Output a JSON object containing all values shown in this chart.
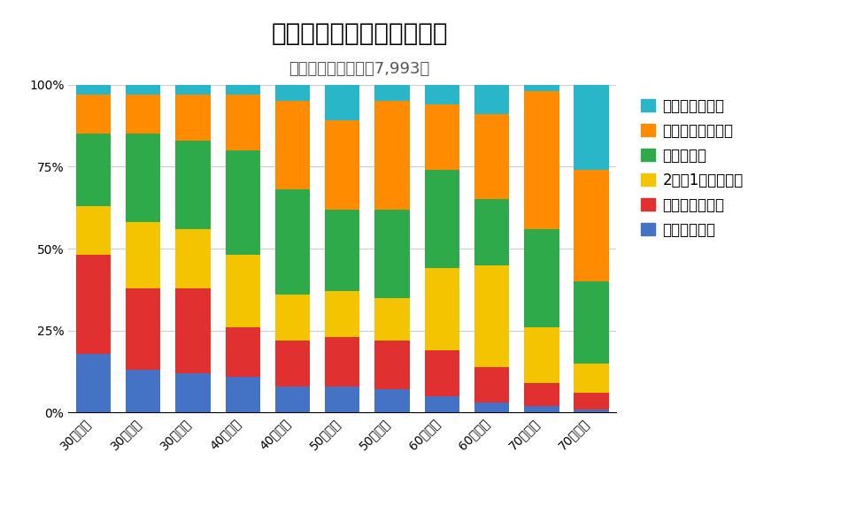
{
  "title": "早朝勃起の年齢による推移",
  "subtitle": "質問紙による調査：7,993例",
  "categories": [
    "30歳未満",
    "30代前半",
    "30代後半",
    "40代前半",
    "40代後半",
    "50代前半",
    "50代後半",
    "60代前半",
    "60代後半",
    "70代前半",
    "70代後半"
  ],
  "legend_labels": [
    "全く気づかない",
    "あまり気づかない",
    "時々気づく",
    "2日に1回は気づく",
    "しばしば気づく",
    "いつも気づく"
  ],
  "colors": [
    "#29B6C8",
    "#FF8C00",
    "#2EAA4A",
    "#F5C400",
    "#E03030",
    "#4472C4"
  ],
  "data": {
    "いつも気づく": [
      18,
      13,
      12,
      11,
      8,
      8,
      7,
      5,
      3,
      2,
      1
    ],
    "しばしば気づく": [
      30,
      25,
      26,
      15,
      14,
      15,
      15,
      14,
      11,
      7,
      5
    ],
    "2日に1回は気づく": [
      15,
      20,
      18,
      22,
      14,
      14,
      13,
      25,
      31,
      17,
      9
    ],
    "時々気づく": [
      22,
      27,
      27,
      32,
      32,
      25,
      27,
      30,
      20,
      30,
      25
    ],
    "あまり気づかない": [
      12,
      12,
      14,
      17,
      27,
      27,
      33,
      20,
      26,
      42,
      34
    ],
    "全く気づかない": [
      3,
      3,
      3,
      3,
      5,
      11,
      5,
      6,
      9,
      2,
      26
    ]
  },
  "background_color": "#FFFFFF",
  "title_fontsize": 20,
  "subtitle_fontsize": 13,
  "legend_fontsize": 12,
  "tick_fontsize": 11
}
